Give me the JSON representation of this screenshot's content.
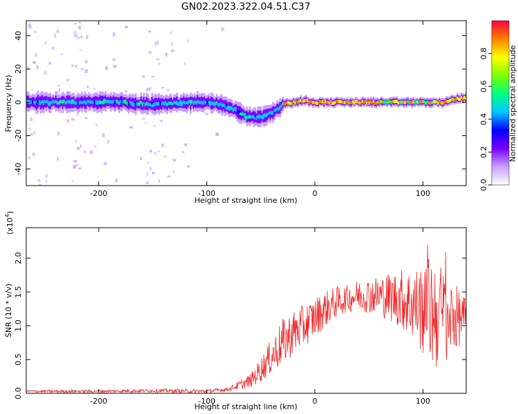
{
  "figure": {
    "title": "GN02.2023.322.04.51.C37"
  },
  "chart_data": [
    {
      "type": "heatmap",
      "title": "GN02.2023.322.04.51.C37",
      "xlabel": "Height of straight line (km)",
      "ylabel": "Frequency (Hz)",
      "xlim": [
        -267,
        140
      ],
      "ylim": [
        -50,
        49
      ],
      "xticks": [
        -200,
        -100,
        0,
        100
      ],
      "xtick_labels": [
        "-200",
        "-100",
        "0",
        "100"
      ],
      "yticks": [
        -40,
        -20,
        0,
        20,
        40
      ],
      "ytick_labels": [
        "-40",
        "-20",
        "0",
        "20",
        "40"
      ],
      "colorbar": {
        "label": "Normalized spectral amplitude",
        "range": [
          0,
          1
        ],
        "ticks": [
          0.0,
          0.2,
          0.4,
          0.6,
          0.8
        ],
        "tick_labels": [
          "0.0",
          "0.2",
          "0.4",
          "0.6",
          "0.8"
        ],
        "colors": [
          "#ffffff",
          "#c8a0ff",
          "#7800ff",
          "#0000ff",
          "#00c8ff",
          "#00ff80",
          "#80ff00",
          "#ffff00",
          "#ff8000",
          "#ff0040"
        ]
      },
      "ridge": {
        "x": [
          -267,
          -240,
          -220,
          -200,
          -180,
          -160,
          -140,
          -120,
          -100,
          -90,
          -80,
          -70,
          -60,
          -50,
          -40,
          -35,
          -30,
          -20,
          -10,
          0,
          20,
          40,
          60,
          80,
          100,
          120,
          130,
          140
        ],
        "y": [
          0,
          0,
          0,
          0,
          0,
          -1,
          -1,
          0,
          0,
          -1,
          -3,
          -6,
          -9,
          -9,
          -6,
          -4,
          -1,
          0,
          1,
          0,
          0,
          0,
          0,
          0,
          0,
          0,
          2,
          3
        ]
      },
      "noise_bands_x": [
        [
          -265,
          -255
        ],
        [
          -240,
          -210
        ],
        [
          -195,
          -185
        ],
        [
          -160,
          -130
        ]
      ],
      "grid": false
    },
    {
      "type": "line",
      "xlabel": "Height of straight line (km)",
      "ylabel": "SNR (10 * v/v)",
      "multiplier_label": "(x10",
      "multiplier_exponent": "4",
      "xlim": [
        -267,
        140
      ],
      "ylim": [
        0,
        2.45
      ],
      "xticks": [
        -200,
        -100,
        0,
        100
      ],
      "xtick_labels": [
        "-200",
        "-100",
        "0",
        "100"
      ],
      "yticks": [
        0.0,
        0.5,
        1.0,
        1.5,
        2.0
      ],
      "ytick_labels": [
        "0.0",
        "0.5",
        "1.0",
        "1.5",
        "2.0"
      ],
      "color": "#ee2222",
      "envelope": {
        "x": [
          -267,
          -200,
          -150,
          -100,
          -80,
          -60,
          -50,
          -40,
          -30,
          -20,
          -10,
          0,
          10,
          20,
          40,
          60,
          80,
          100,
          110,
          120,
          130,
          140
        ],
        "y": [
          0.03,
          0.03,
          0.04,
          0.03,
          0.06,
          0.18,
          0.35,
          0.55,
          0.75,
          0.9,
          1.0,
          1.12,
          1.25,
          1.35,
          1.45,
          1.45,
          1.4,
          1.25,
          1.2,
          1.15,
          1.12,
          1.1
        ]
      },
      "noise_amplitude": {
        "x": [
          -267,
          -80,
          -60,
          -30,
          0,
          30,
          60,
          80,
          95,
          110,
          120,
          130,
          140
        ],
        "y": [
          0.02,
          0.03,
          0.1,
          0.35,
          0.3,
          0.2,
          0.3,
          0.45,
          0.6,
          0.9,
          0.7,
          0.5,
          0.3
        ]
      },
      "peak_max": 2.43,
      "grid": false
    }
  ]
}
